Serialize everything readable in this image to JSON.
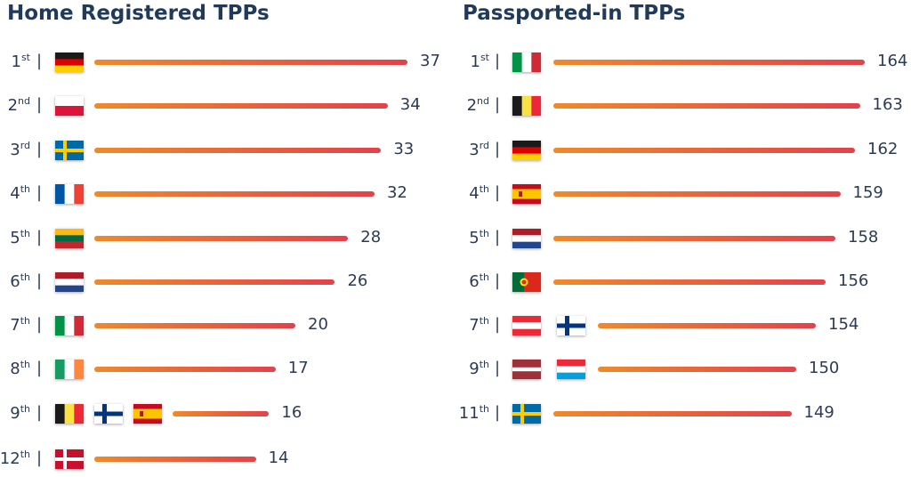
{
  "chart_data": [
    {
      "type": "bar",
      "title": "Home Registered TPPs",
      "rows": [
        {
          "rank": "1",
          "suffix": "st",
          "countries": [
            "germany"
          ],
          "value": 37
        },
        {
          "rank": "2",
          "suffix": "nd",
          "countries": [
            "poland"
          ],
          "value": 34
        },
        {
          "rank": "3",
          "suffix": "rd",
          "countries": [
            "sweden"
          ],
          "value": 33
        },
        {
          "rank": "4",
          "suffix": "th",
          "countries": [
            "france"
          ],
          "value": 32
        },
        {
          "rank": "5",
          "suffix": "th",
          "countries": [
            "lithuania"
          ],
          "value": 28
        },
        {
          "rank": "6",
          "suffix": "th",
          "countries": [
            "netherlands"
          ],
          "value": 26
        },
        {
          "rank": "7",
          "suffix": "th",
          "countries": [
            "italy"
          ],
          "value": 20
        },
        {
          "rank": "8",
          "suffix": "th",
          "countries": [
            "ireland"
          ],
          "value": 17
        },
        {
          "rank": "9",
          "suffix": "th",
          "countries": [
            "belgium",
            "finland",
            "spain"
          ],
          "value": 16
        },
        {
          "rank": "12",
          "suffix": "th",
          "countries": [
            "denmark"
          ],
          "value": 14
        }
      ]
    },
    {
      "type": "bar",
      "title": "Passported-in TPPs",
      "rows": [
        {
          "rank": "1",
          "suffix": "st",
          "countries": [
            "italy"
          ],
          "value": 164
        },
        {
          "rank": "2",
          "suffix": "nd",
          "countries": [
            "belgium"
          ],
          "value": 163
        },
        {
          "rank": "3",
          "suffix": "rd",
          "countries": [
            "germany"
          ],
          "value": 162
        },
        {
          "rank": "4",
          "suffix": "th",
          "countries": [
            "spain"
          ],
          "value": 159
        },
        {
          "rank": "5",
          "suffix": "th",
          "countries": [
            "netherlands"
          ],
          "value": 158
        },
        {
          "rank": "6",
          "suffix": "th",
          "countries": [
            "portugal"
          ],
          "value": 156
        },
        {
          "rank": "7",
          "suffix": "th",
          "countries": [
            "austria",
            "finland"
          ],
          "value": 154
        },
        {
          "rank": "9",
          "suffix": "th",
          "countries": [
            "latvia",
            "luxembourg"
          ],
          "value": 150
        },
        {
          "rank": "11",
          "suffix": "th",
          "countries": [
            "sweden"
          ],
          "value": 149
        }
      ]
    }
  ],
  "colors": {
    "bar_start": "#ee8a2c",
    "bar_end": "#e2424a",
    "text": "#2c3b55",
    "title": "#1f3a5a"
  }
}
